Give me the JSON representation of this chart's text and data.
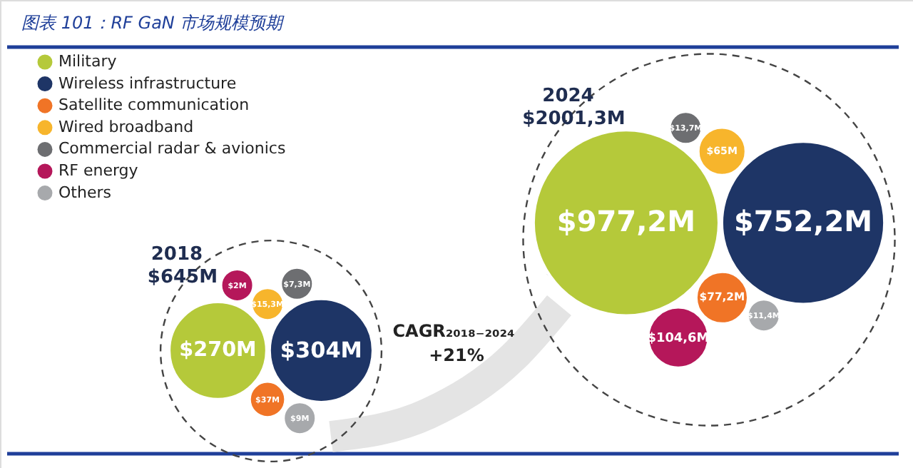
{
  "chart_data": {
    "type": "other",
    "title": "图表 101：RF GaN 市场规模预期",
    "categories": [
      "2018",
      "2024"
    ],
    "series": [
      {
        "name": "Military",
        "color": "#b5c93a",
        "values": [
          270,
          977.2
        ],
        "value_labels": [
          "$270M",
          "$977,2M"
        ]
      },
      {
        "name": "Wireless infrastructure",
        "color": "#1e3566",
        "values": [
          304,
          752.2
        ],
        "value_labels": [
          "$304M",
          "$752,2M"
        ]
      },
      {
        "name": "Satellite communication",
        "color": "#f07426",
        "values": [
          37,
          77.2
        ],
        "value_labels": [
          "$37M",
          "$77,2M"
        ]
      },
      {
        "name": "Wired broadband",
        "color": "#f7b52c",
        "values": [
          15.3,
          65
        ],
        "value_labels": [
          "$15,3M",
          "$65M"
        ]
      },
      {
        "name": "Commercial radar & avionics",
        "color": "#6d6e71",
        "values": [
          7.3,
          13.7
        ],
        "value_labels": [
          "$7,3M",
          "$13,7M"
        ]
      },
      {
        "name": "RF energy",
        "color": "#b5175a",
        "values": [
          2,
          104.6
        ],
        "value_labels": [
          "$2M",
          "$104,6M"
        ]
      },
      {
        "name": "Others",
        "color": "#a7a9ac",
        "values": [
          9,
          11.4
        ],
        "value_labels": [
          "$9M",
          "$11,4M"
        ]
      }
    ],
    "totals": [
      "$645M",
      "$2001,3M"
    ],
    "annotations": [
      "CAGR₂₀₁₈₋₂₀₂₄",
      "+21%"
    ],
    "legend": "top left"
  }
}
